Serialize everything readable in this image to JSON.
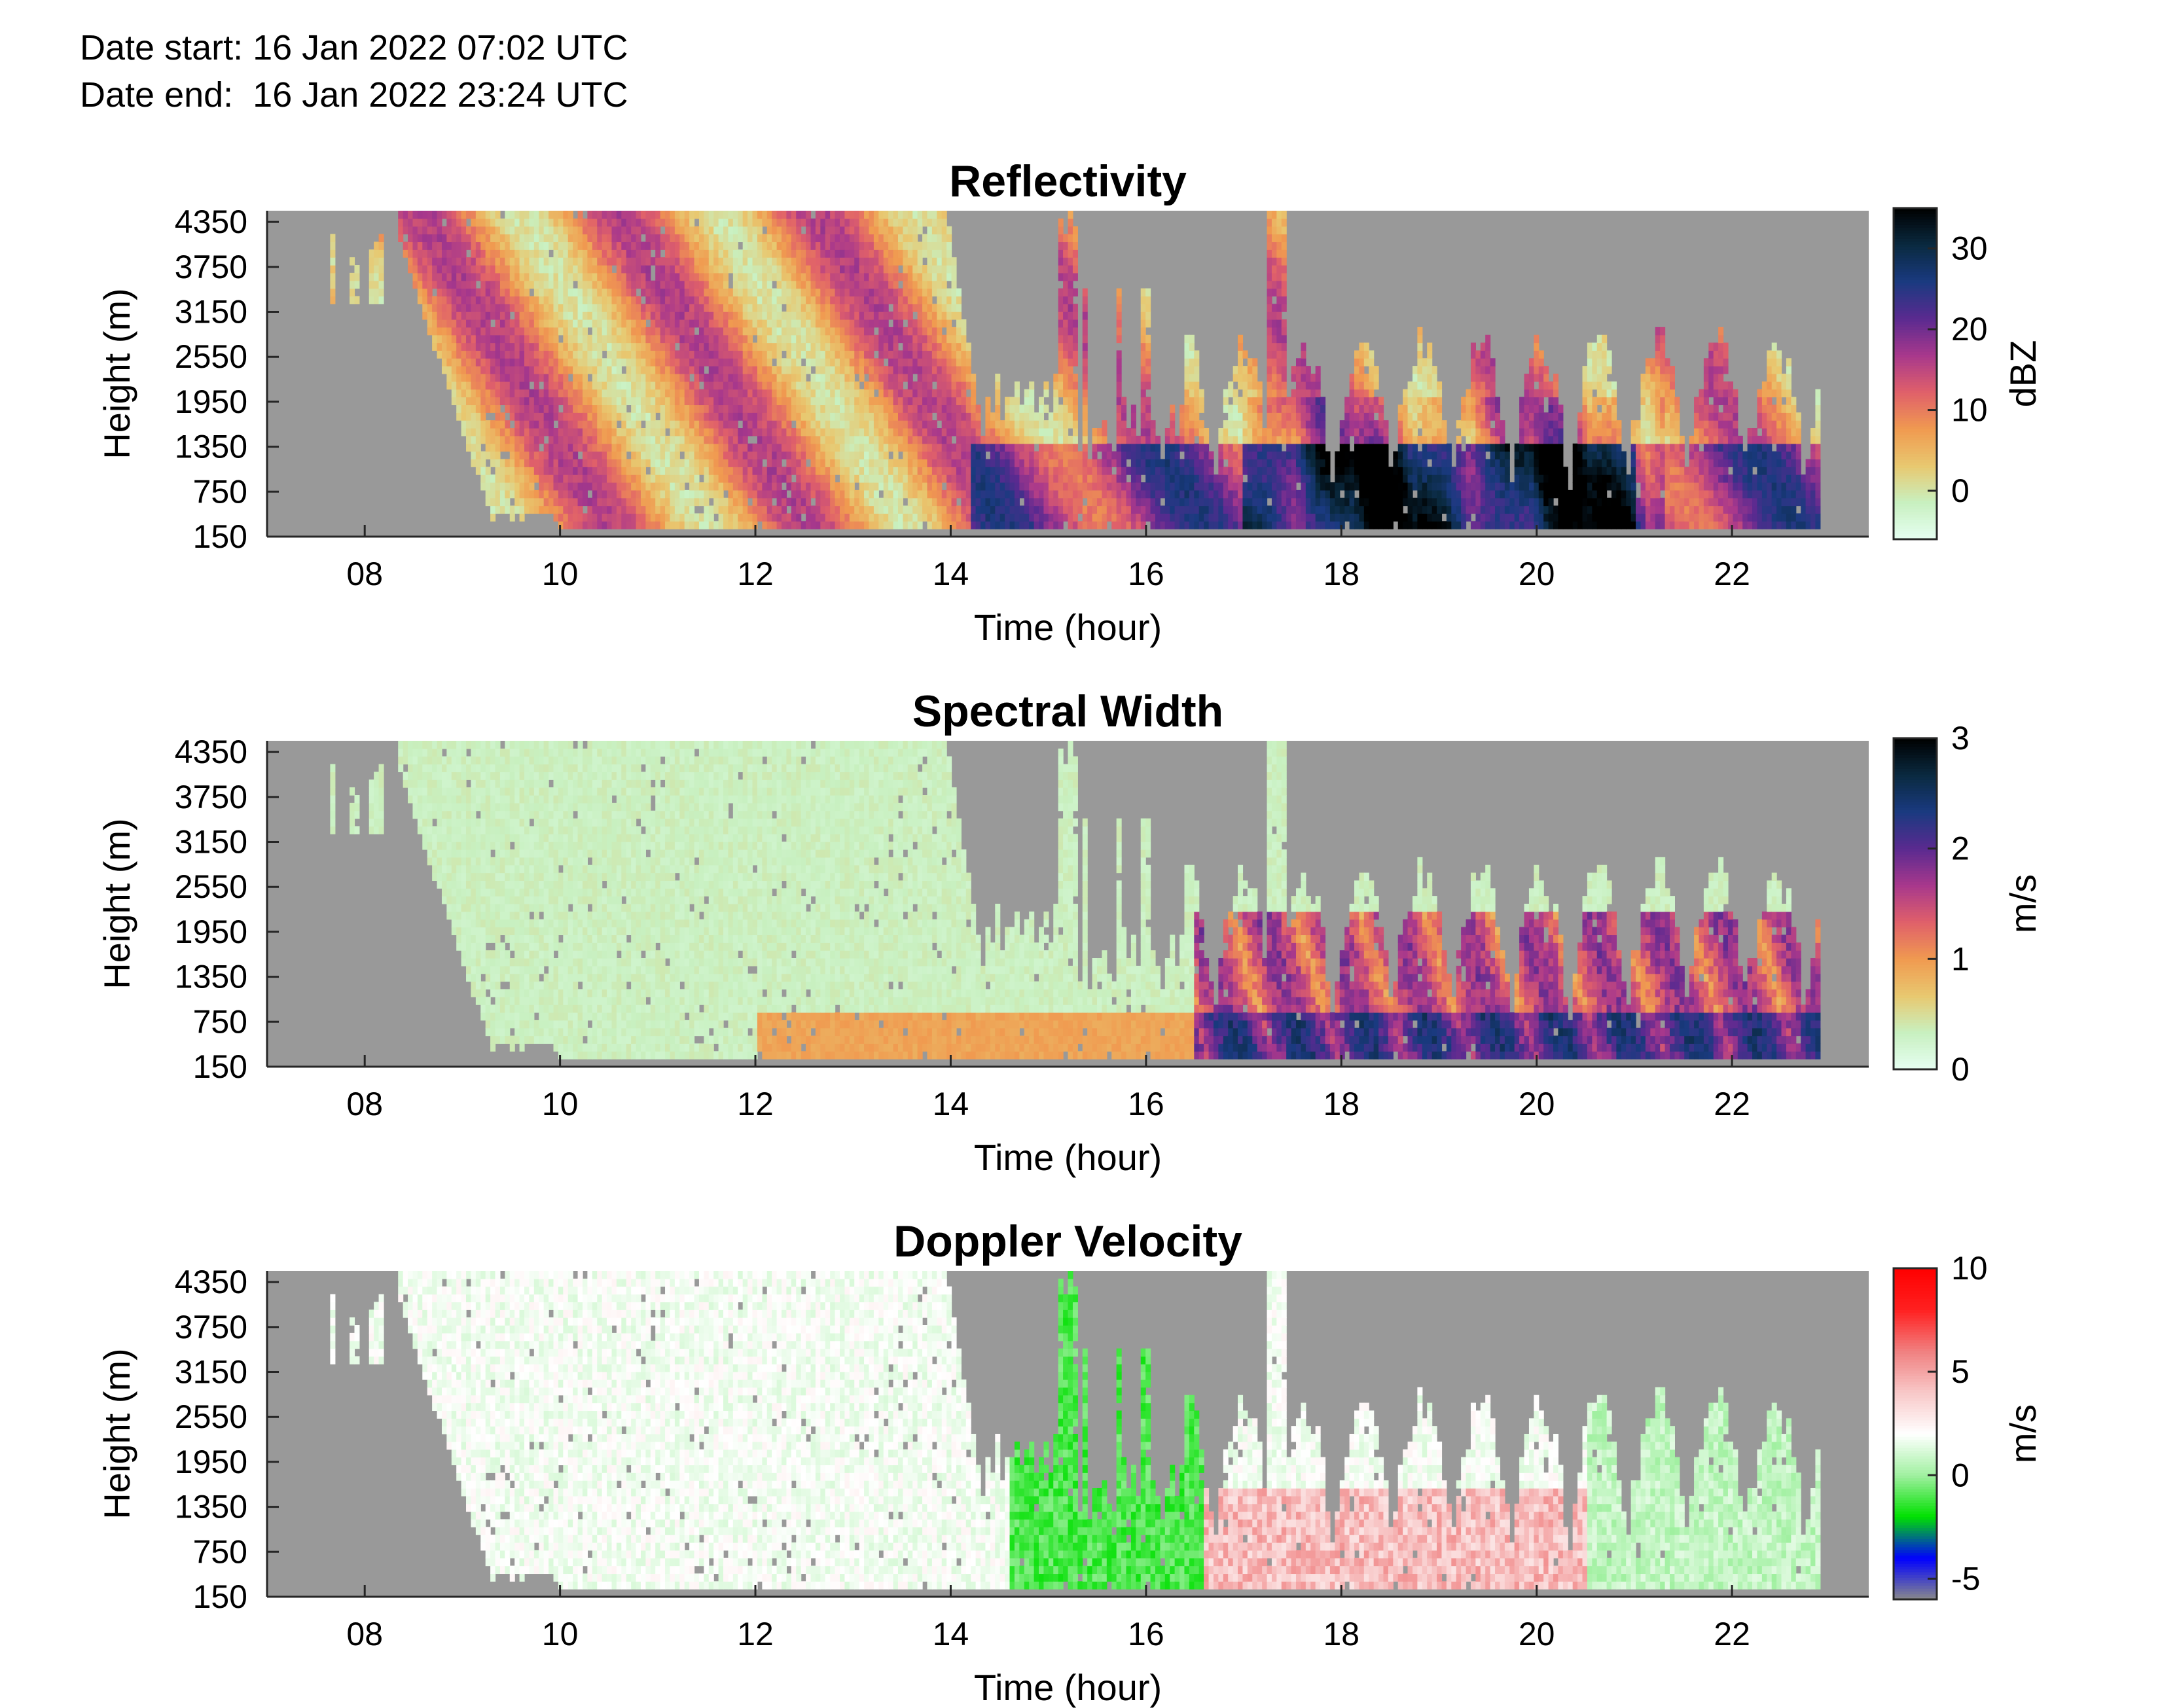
{
  "header": {
    "date_start": "Date start: 16 Jan 2022 07:02 UTC",
    "date_end": "Date end:  16 Jan 2022 23:24 UTC"
  },
  "colors": {
    "background_no_data": "#999999",
    "axis": "#262626"
  },
  "chart_data": [
    {
      "type": "heatmap",
      "title": "Reflectivity",
      "xlabel": "Time (hour)",
      "ylabel": "Height (m)",
      "colorbar_label": "dBZ",
      "xlim": [
        7.0,
        23.4
      ],
      "ylim": [
        150,
        4500
      ],
      "xticks": [
        8,
        10,
        12,
        14,
        16,
        18,
        20,
        22
      ],
      "xtick_labels": [
        "08",
        "10",
        "12",
        "14",
        "16",
        "18",
        "20",
        "22"
      ],
      "yticks": [
        150,
        750,
        1350,
        1950,
        2550,
        3150,
        3750,
        4350
      ],
      "ytick_labels": [
        "150",
        "750",
        "1350",
        "1950",
        "2550",
        "3150",
        "3750",
        "4350"
      ],
      "clim": [
        -6,
        35
      ],
      "cticks": [
        0,
        10,
        20,
        30
      ],
      "ctick_labels": [
        "0",
        "10",
        "20",
        "30"
      ],
      "colormap": [
        "#e6fff2",
        "#c8f0c0",
        "#e8c870",
        "#f09a50",
        "#e0606a",
        "#a8388c",
        "#5a2a90",
        "#1a3a80",
        "#0a2a40",
        "#000000"
      ],
      "grid": false
    },
    {
      "type": "heatmap",
      "title": "Spectral Width",
      "xlabel": "Time (hour)",
      "ylabel": "Height (m)",
      "colorbar_label": "m/s",
      "xlim": [
        7.0,
        23.4
      ],
      "ylim": [
        150,
        4500
      ],
      "xticks": [
        8,
        10,
        12,
        14,
        16,
        18,
        20,
        22
      ],
      "xtick_labels": [
        "08",
        "10",
        "12",
        "14",
        "16",
        "18",
        "20",
        "22"
      ],
      "yticks": [
        150,
        750,
        1350,
        1950,
        2550,
        3150,
        3750,
        4350
      ],
      "ytick_labels": [
        "150",
        "750",
        "1350",
        "1950",
        "2550",
        "3150",
        "3750",
        "4350"
      ],
      "clim": [
        0,
        3
      ],
      "cticks": [
        0,
        1,
        2,
        3
      ],
      "ctick_labels": [
        "0",
        "1",
        "2",
        "3"
      ],
      "colormap": [
        "#e6fff2",
        "#c8f0c0",
        "#e8c870",
        "#f09a50",
        "#e0606a",
        "#a8388c",
        "#5a2a90",
        "#1a3a80",
        "#0a2a40",
        "#000000"
      ],
      "grid": false
    },
    {
      "type": "heatmap",
      "title": "Doppler Velocity",
      "xlabel": "Time (hour)",
      "ylabel": "Height (m)",
      "colorbar_label": "m/s",
      "xlim": [
        7.0,
        23.4
      ],
      "ylim": [
        150,
        4500
      ],
      "xticks": [
        8,
        10,
        12,
        14,
        16,
        18,
        20,
        22
      ],
      "xtick_labels": [
        "08",
        "10",
        "12",
        "14",
        "16",
        "18",
        "20",
        "22"
      ],
      "yticks": [
        150,
        750,
        1350,
        1950,
        2550,
        3150,
        3750,
        4350
      ],
      "ytick_labels": [
        "150",
        "750",
        "1350",
        "1950",
        "2550",
        "3150",
        "3750",
        "4350"
      ],
      "clim": [
        -6,
        10
      ],
      "cticks": [
        -5,
        0,
        5,
        10
      ],
      "ctick_labels": [
        "-5",
        "0",
        "5",
        "10"
      ],
      "colormap": [
        "#8a8a8a",
        "#0000ff",
        "#00e000",
        "#a0f0a0",
        "#ffffff",
        "#f8c8c8",
        "#f08080",
        "#ff2020",
        "#ff0000"
      ],
      "grid": false
    }
  ]
}
